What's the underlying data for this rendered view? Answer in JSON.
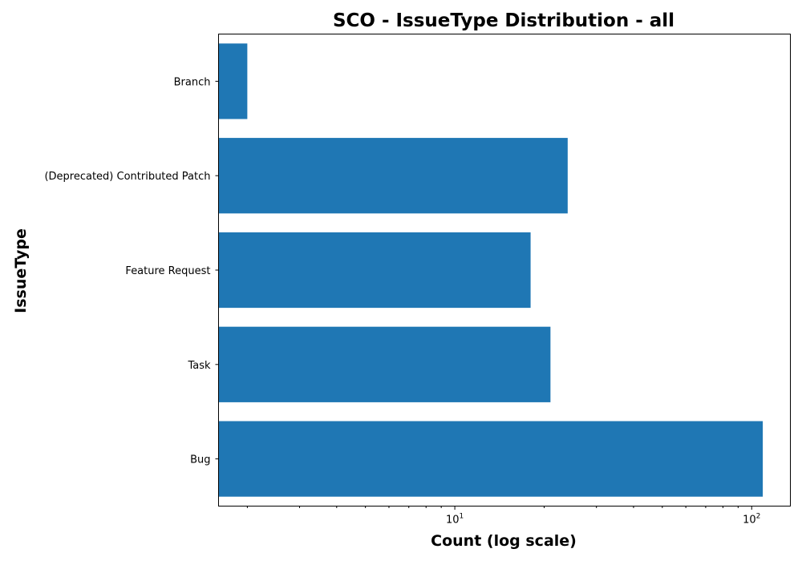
{
  "chart_data": {
    "type": "bar",
    "orientation": "horizontal",
    "title": "SCO - IssueType Distribution - all",
    "xlabel": "Count (log scale)",
    "ylabel": "IssueType",
    "x_scale": "log",
    "xlim": [
      1.6,
      135
    ],
    "x_major_ticks": [
      {
        "value": 10,
        "base": "10",
        "exp": "1"
      },
      {
        "value": 100,
        "base": "10",
        "exp": "2"
      }
    ],
    "categories": [
      "Branch",
      "(Deprecated) Contributed Patch",
      "Feature Request",
      "Task",
      "Bug"
    ],
    "values": [
      2,
      24,
      18,
      21,
      109
    ],
    "bar_color": "#1f77b4",
    "grid": false,
    "legend": "none"
  }
}
